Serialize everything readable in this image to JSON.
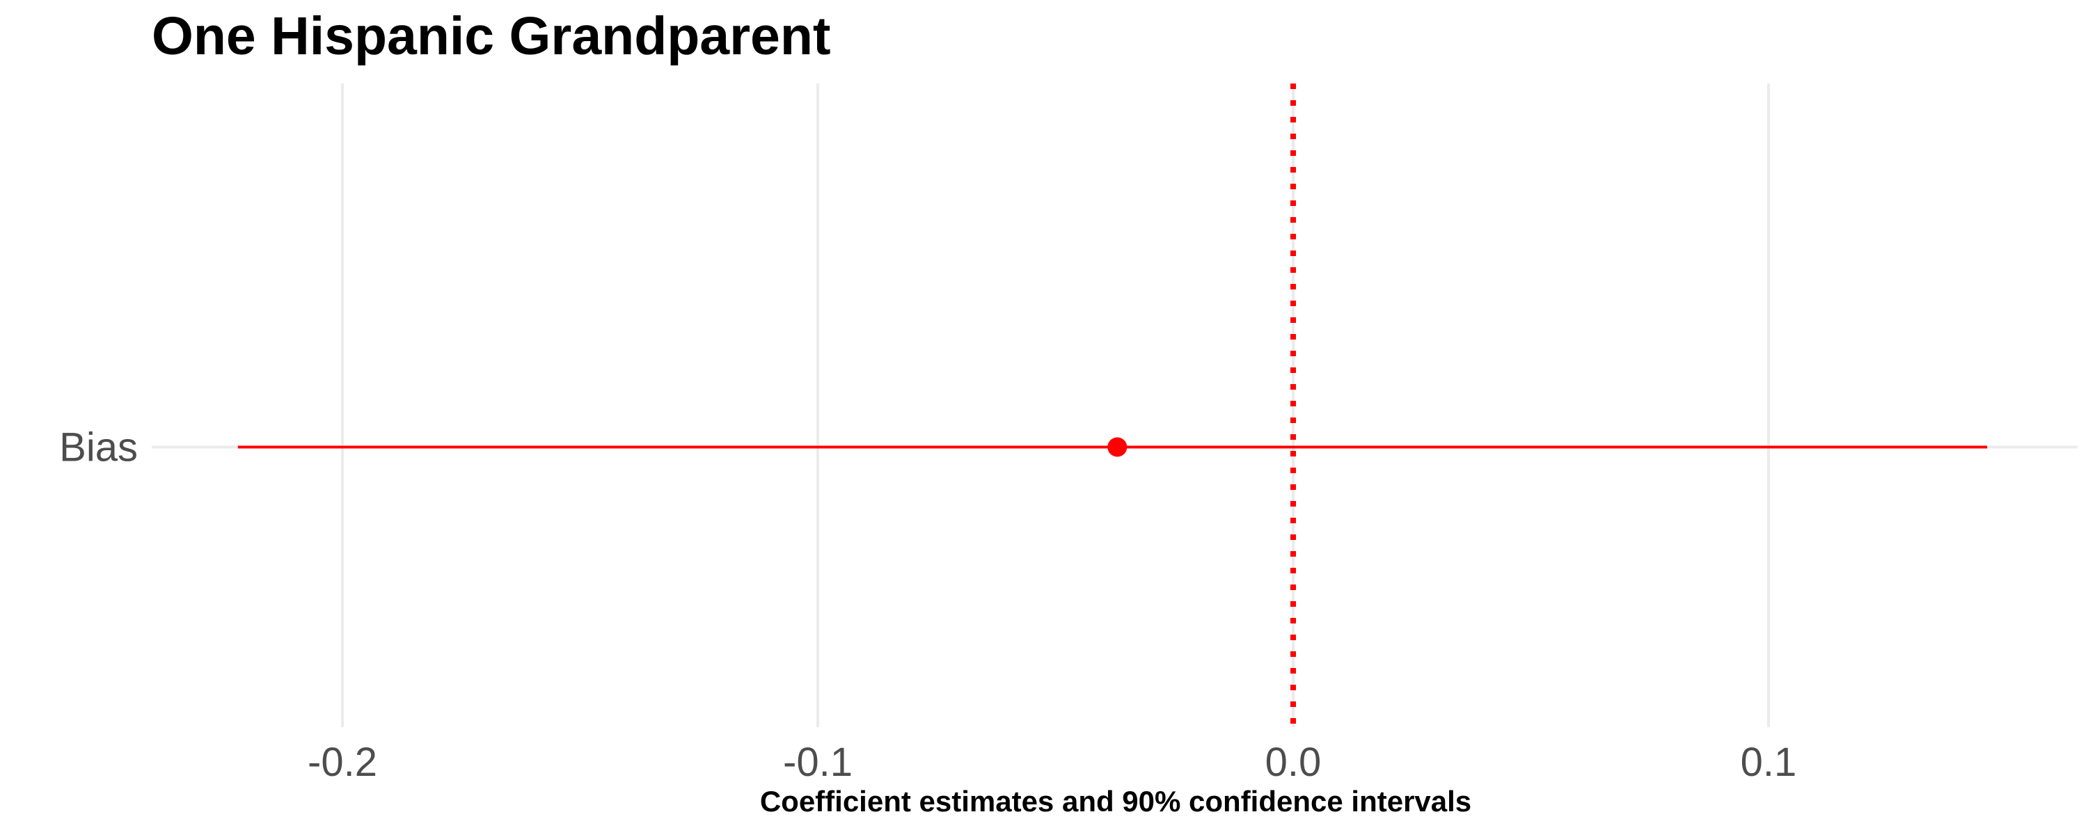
{
  "chart_data": {
    "type": "coefficient-plot",
    "title": "One Hispanic Grandparent",
    "xlabel": "Coefficient estimates and 90% confidence intervals",
    "ylabel": "",
    "xlim": [
      -0.24,
      0.165
    ],
    "x_ticks": [
      -0.2,
      -0.1,
      0.0,
      0.1
    ],
    "x_tick_labels": [
      "-0.2",
      "-0.1",
      "0.0",
      "0.1"
    ],
    "grid": true,
    "reference_line": {
      "x": 0.0,
      "style": "dotted",
      "color": "#ff0000"
    },
    "color": "#ff0000",
    "points": [
      {
        "label": "Bias",
        "estimate": -0.037,
        "ci_low": -0.222,
        "ci_high": 0.146
      }
    ]
  }
}
